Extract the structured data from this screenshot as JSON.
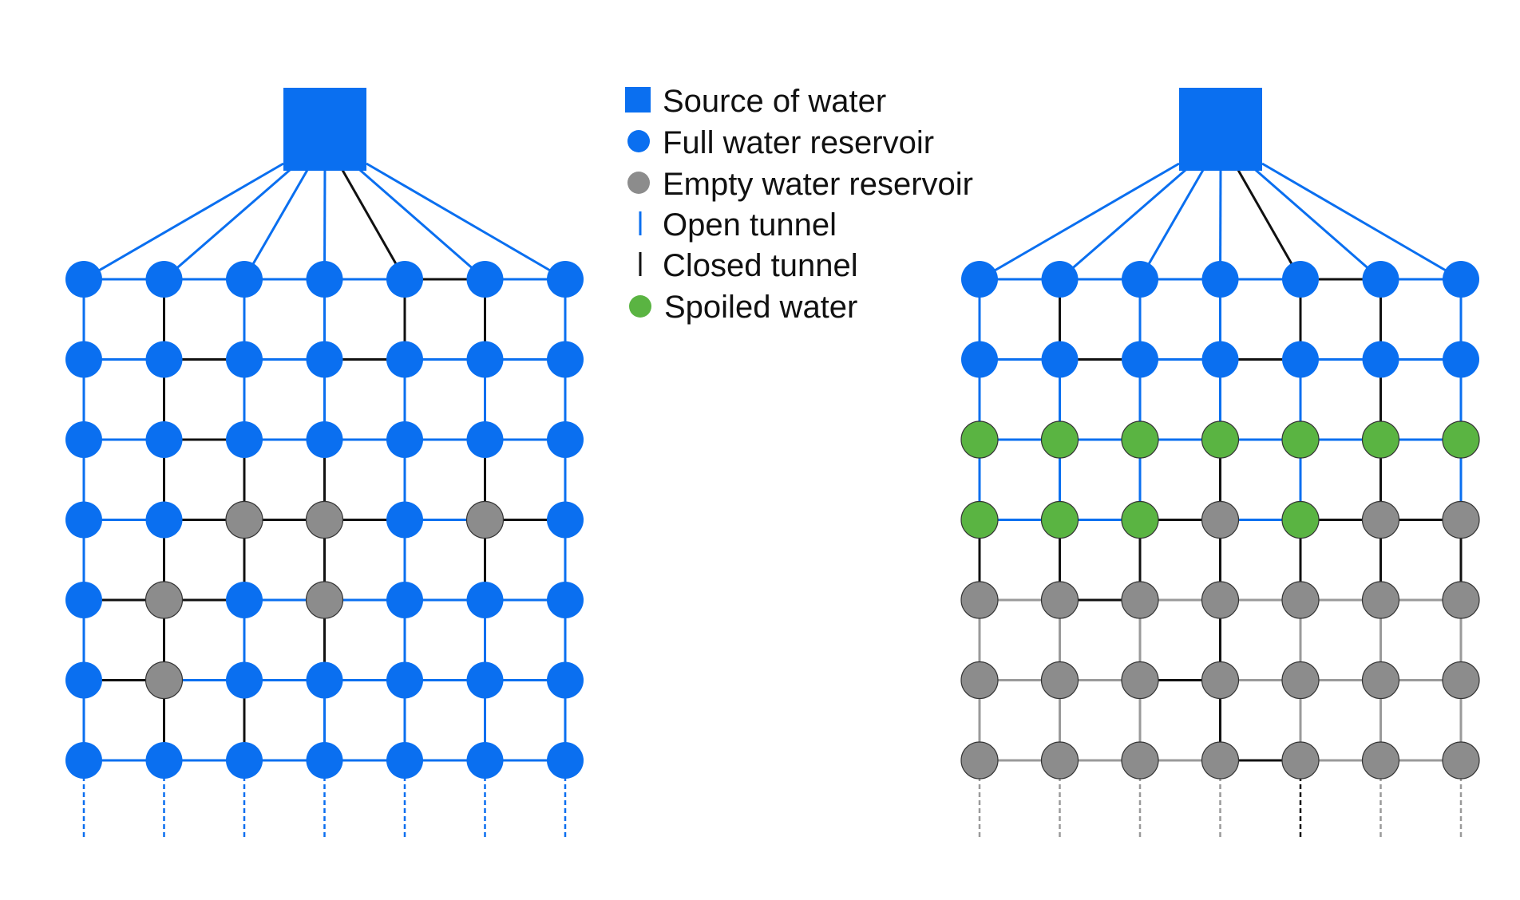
{
  "colors": {
    "open": "#0a6ff0",
    "closed": "#111111",
    "full": "#0a6ff0",
    "empty": "#8c8c8c",
    "spoiled": "#5ab442",
    "faded": "#9a9a9a",
    "node_stroke": "#333333"
  },
  "legend": {
    "items": [
      {
        "marker": "square",
        "color": "#0a6ff0",
        "label": "Source of water"
      },
      {
        "marker": "circle",
        "color": "#0a6ff0",
        "label": "Full water reservoir"
      },
      {
        "marker": "circle",
        "color": "#8c8c8c",
        "label": "Empty water reservoir"
      },
      {
        "marker": "line",
        "color": "#0a6ff0",
        "label": "Open tunnel"
      },
      {
        "marker": "line",
        "color": "#111111",
        "label": "Closed tunnel"
      },
      {
        "marker": "circle",
        "color": "#5ab442",
        "label": "Spoiled water"
      }
    ]
  },
  "grids": [
    {
      "name": "left",
      "nodes": [
        "FFFFFFF",
        "FFFFFFF",
        "FFFFFFF",
        "FFEEFEF",
        "FEFEFFF",
        "FEFFFFF",
        "FFFFFFF"
      ],
      "source_edges": "OOOOCOO",
      "h_edges": [
        "OOOOCO",
        "OCOCOO",
        "OCOOOO",
        "OCCCOC",
        "CCOOOO",
        "COOOOO",
        "OOOOOO"
      ],
      "v_edges": [
        "OCOOCCO",
        "OCOOOOO",
        "OCCCOCO",
        "OCCCOCO",
        "OCOCOOO",
        "OCCOOOO"
      ],
      "bottom_edges": "OOOOOOO"
    },
    {
      "name": "right",
      "nodes": [
        "FFFFFFF",
        "FFFFFFF",
        "SSSSSSS",
        "SSSESEE",
        "EEEEEEE",
        "EEEEEEE",
        "EEEEEEE"
      ],
      "source_edges": "OOOOCOO",
      "h_edges": [
        "OOOOCO",
        "OCOCOO",
        "OOOOOO",
        "OOCOCC",
        "GCGGGG",
        "GGCGGG",
        "GGGCGG"
      ],
      "v_edges": [
        "OCOOCCO",
        "OOOOOCO",
        "OOOCOCO",
        "CCCCCCC",
        "GGGCGGG",
        "GGGCGGG"
      ],
      "bottom_edges": "GGGGCGG"
    }
  ]
}
